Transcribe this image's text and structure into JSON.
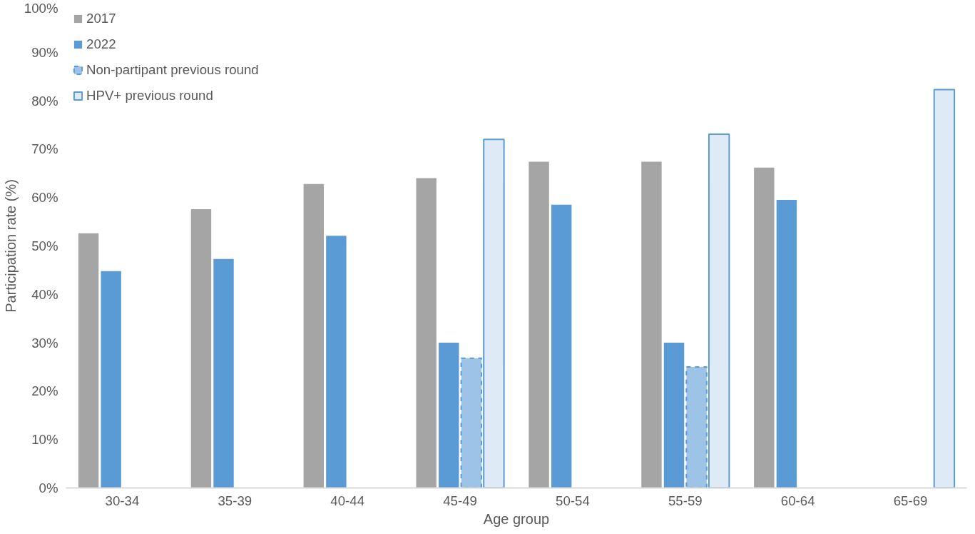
{
  "chart_data": {
    "type": "bar",
    "xlabel": "Age group",
    "ylabel": "Participation rate (%)",
    "categories": [
      "30-34",
      "35-39",
      "40-44",
      "45-49",
      "50-54",
      "55-59",
      "60-64",
      "65-69"
    ],
    "series": [
      {
        "name": "2017",
        "color": "#a5a5a5",
        "values": [
          52.6,
          57.6,
          62.8,
          64.0,
          67.4,
          67.4,
          66.2,
          null
        ]
      },
      {
        "name": "2022",
        "color": "#5b9bd5",
        "values": [
          44.8,
          47.3,
          52.1,
          30.0,
          58.5,
          30.0,
          59.5,
          null
        ]
      },
      {
        "name": "Non-partipant previous round",
        "color": "#9dc3e6",
        "line_style": "dashed",
        "values": [
          null,
          null,
          null,
          26.8,
          null,
          25.0,
          null,
          null
        ]
      },
      {
        "name": "HPV+ previous round",
        "color": "#deebf7",
        "line_style": "solid",
        "values": [
          null,
          null,
          null,
          72.0,
          null,
          73.1,
          null,
          82.3
        ]
      }
    ],
    "ylim": [
      0,
      100
    ],
    "yticks": [
      {
        "value": 0,
        "label": "0%"
      },
      {
        "value": 10,
        "label": "10%"
      },
      {
        "value": 20,
        "label": "20%"
      },
      {
        "value": 30,
        "label": "30%"
      },
      {
        "value": 40,
        "label": "40%"
      },
      {
        "value": 50,
        "label": "50%"
      },
      {
        "value": 60,
        "label": "60%"
      },
      {
        "value": 70,
        "label": "70%"
      },
      {
        "value": 80,
        "label": "80%"
      },
      {
        "value": 90,
        "label": "90%"
      },
      {
        "value": 100,
        "label": "100%"
      }
    ],
    "grid": false,
    "legend": "top left"
  }
}
